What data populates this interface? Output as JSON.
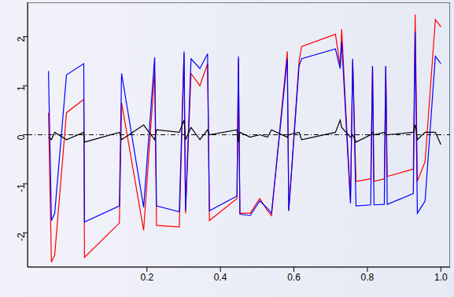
{
  "chart_data": {
    "type": "line",
    "x": [
      -0.068,
      -0.06,
      -0.051,
      -0.019,
      0.028,
      0.03,
      0.125,
      0.131,
      0.191,
      0.221,
      0.226,
      0.288,
      0.301,
      0.305,
      0.32,
      0.344,
      0.365,
      0.37,
      0.445,
      0.449,
      0.453,
      0.481,
      0.507,
      0.528,
      0.539,
      0.582,
      0.586,
      0.614,
      0.621,
      0.713,
      0.726,
      0.73,
      0.754,
      0.76,
      0.769,
      0.809,
      0.814,
      0.818,
      0.846,
      0.85,
      0.854,
      0.925,
      0.93,
      0.936,
      0.957,
      0.985,
      1.0
    ],
    "series": [
      {
        "color": "#ff0000",
        "values": [
          0.45,
          -2.6,
          -2.45,
          0.45,
          0.72,
          -2.5,
          -1.8,
          0.65,
          -1.95,
          1.3,
          -1.85,
          -1.88,
          1.65,
          -1.6,
          1.25,
          1.0,
          1.45,
          -1.75,
          -1.3,
          1.55,
          -1.6,
          -1.6,
          -1.3,
          -1.55,
          -1.65,
          1.7,
          -1.55,
          1.5,
          1.8,
          2.05,
          1.4,
          2.15,
          -1.35,
          1.5,
          -0.95,
          -0.9,
          1.4,
          -0.95,
          -0.9,
          1.4,
          -0.85,
          -0.7,
          2.45,
          -0.95,
          -0.55,
          2.35,
          2.2
        ]
      },
      {
        "color": "#0000ff",
        "values": [
          1.3,
          -1.75,
          -1.6,
          1.22,
          1.45,
          -1.78,
          -1.45,
          1.25,
          -1.48,
          1.58,
          -1.45,
          -1.57,
          1.7,
          -1.55,
          1.55,
          1.35,
          1.65,
          -1.55,
          -1.25,
          1.6,
          -1.62,
          -1.65,
          -1.35,
          -1.5,
          -1.6,
          1.55,
          -1.55,
          1.4,
          1.55,
          1.75,
          1.35,
          1.9,
          -1.4,
          1.55,
          -1.45,
          -1.43,
          1.4,
          -1.43,
          -1.42,
          1.4,
          -1.42,
          -1.2,
          2.1,
          -1.6,
          -1.35,
          1.6,
          1.45
        ]
      },
      {
        "color": "#000000",
        "values": [
          -0.05,
          -0.1,
          0.05,
          -0.1,
          0.05,
          -0.15,
          0.05,
          -0.1,
          0.2,
          -0.1,
          0.1,
          0.05,
          0.3,
          -0.1,
          0.15,
          -0.1,
          0.1,
          0.0,
          0.1,
          -0.15,
          0.05,
          -0.05,
          0.0,
          -0.05,
          0.1,
          -0.05,
          0.0,
          0.05,
          -0.1,
          0.05,
          0.3,
          0.15,
          -0.05,
          0.0,
          -0.15,
          0.0,
          0.05,
          0.0,
          0.05,
          0.0,
          0.0,
          0.05,
          0.2,
          -0.1,
          0.05,
          0.05,
          -0.2
        ]
      }
    ],
    "reference_line": 0,
    "xlim": [
      -0.125,
      1.025
    ],
    "xticks": [
      0.2,
      0.4,
      0.6,
      0.8,
      {
        "value": 1,
        "label": "1.0"
      }
    ],
    "ylim": [
      -2.7,
      2.7
    ],
    "yticks": [
      -2,
      -1,
      0,
      1,
      2
    ]
  }
}
